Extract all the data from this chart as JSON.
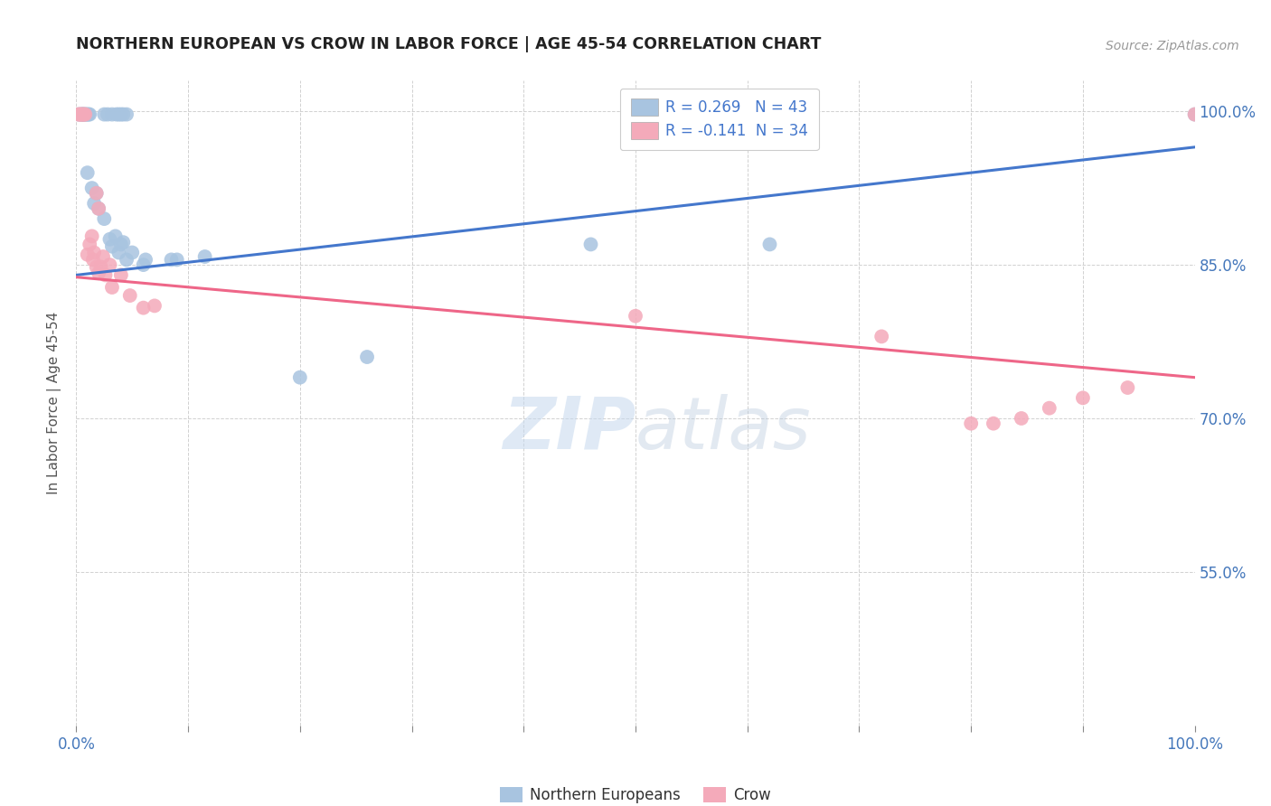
{
  "title": "NORTHERN EUROPEAN VS CROW IN LABOR FORCE | AGE 45-54 CORRELATION CHART",
  "source": "Source: ZipAtlas.com",
  "ylabel": "In Labor Force | Age 45-54",
  "xlim": [
    0.0,
    1.0
  ],
  "ylim": [
    0.4,
    1.03
  ],
  "ytick_positions": [
    0.55,
    0.7,
    0.85,
    1.0
  ],
  "ytick_labels": [
    "55.0%",
    "70.0%",
    "85.0%",
    "100.0%"
  ],
  "legend_r1": "R = 0.269   N = 43",
  "legend_r2": "R = -0.141  N = 34",
  "watermark_zip": "ZIP",
  "watermark_atlas": "atlas",
  "blue_color": "#A8C4E0",
  "pink_color": "#F4AABA",
  "blue_line_color": "#4477CC",
  "pink_line_color": "#EE6688",
  "blue_scatter": [
    [
      0.002,
      0.997
    ],
    [
      0.004,
      0.997
    ],
    [
      0.005,
      0.997
    ],
    [
      0.006,
      0.997
    ],
    [
      0.006,
      0.997
    ],
    [
      0.007,
      0.997
    ],
    [
      0.008,
      0.997
    ],
    [
      0.009,
      0.997
    ],
    [
      0.01,
      0.997
    ],
    [
      0.011,
      0.997
    ],
    [
      0.012,
      0.997
    ],
    [
      0.025,
      0.997
    ],
    [
      0.028,
      0.997
    ],
    [
      0.032,
      0.997
    ],
    [
      0.036,
      0.997
    ],
    [
      0.038,
      0.997
    ],
    [
      0.04,
      0.997
    ],
    [
      0.042,
      0.997
    ],
    [
      0.045,
      0.997
    ],
    [
      0.01,
      0.94
    ],
    [
      0.014,
      0.925
    ],
    [
      0.016,
      0.91
    ],
    [
      0.018,
      0.92
    ],
    [
      0.02,
      0.905
    ],
    [
      0.025,
      0.895
    ],
    [
      0.03,
      0.875
    ],
    [
      0.032,
      0.868
    ],
    [
      0.035,
      0.878
    ],
    [
      0.038,
      0.862
    ],
    [
      0.04,
      0.87
    ],
    [
      0.042,
      0.872
    ],
    [
      0.045,
      0.855
    ],
    [
      0.05,
      0.862
    ],
    [
      0.06,
      0.85
    ],
    [
      0.062,
      0.855
    ],
    [
      0.085,
      0.855
    ],
    [
      0.09,
      0.855
    ],
    [
      0.115,
      0.858
    ],
    [
      0.2,
      0.74
    ],
    [
      0.26,
      0.76
    ],
    [
      0.46,
      0.87
    ],
    [
      0.62,
      0.87
    ],
    [
      1.0,
      0.997
    ]
  ],
  "pink_scatter": [
    [
      0.002,
      0.997
    ],
    [
      0.003,
      0.997
    ],
    [
      0.004,
      0.997
    ],
    [
      0.005,
      0.997
    ],
    [
      0.006,
      0.997
    ],
    [
      0.007,
      0.997
    ],
    [
      0.008,
      0.997
    ],
    [
      0.01,
      0.86
    ],
    [
      0.012,
      0.87
    ],
    [
      0.014,
      0.878
    ],
    [
      0.015,
      0.855
    ],
    [
      0.016,
      0.862
    ],
    [
      0.018,
      0.848
    ],
    [
      0.02,
      0.842
    ],
    [
      0.022,
      0.848
    ],
    [
      0.024,
      0.858
    ],
    [
      0.026,
      0.84
    ],
    [
      0.03,
      0.85
    ],
    [
      0.032,
      0.828
    ],
    [
      0.04,
      0.84
    ],
    [
      0.048,
      0.82
    ],
    [
      0.018,
      0.92
    ],
    [
      0.02,
      0.905
    ],
    [
      0.06,
      0.808
    ],
    [
      0.07,
      0.81
    ],
    [
      0.5,
      0.8
    ],
    [
      0.72,
      0.78
    ],
    [
      0.8,
      0.695
    ],
    [
      0.82,
      0.695
    ],
    [
      0.845,
      0.7
    ],
    [
      0.87,
      0.71
    ],
    [
      0.9,
      0.72
    ],
    [
      0.94,
      0.73
    ],
    [
      1.0,
      0.997
    ]
  ],
  "blue_line_x": [
    0.0,
    1.0
  ],
  "blue_line_y": [
    0.84,
    0.965
  ],
  "pink_line_x": [
    0.0,
    1.0
  ],
  "pink_line_y": [
    0.838,
    0.74
  ],
  "background_color": "#FFFFFF",
  "grid_color": "#CCCCCC",
  "title_color": "#222222",
  "right_label_color": "#4477BB",
  "bottom_label_color": "#4477BB"
}
